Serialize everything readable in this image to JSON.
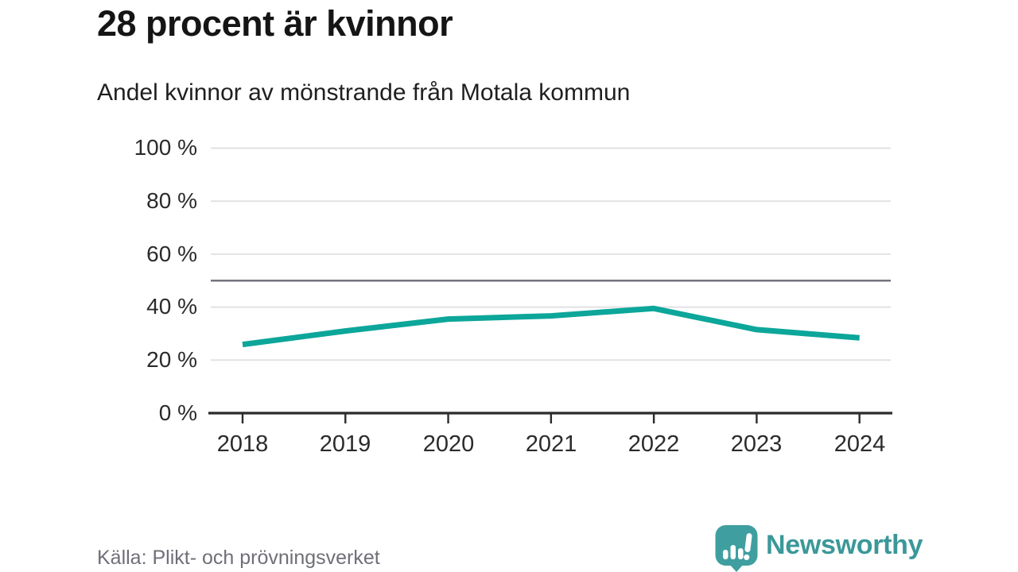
{
  "header": {
    "title": "28 procent är kvinnor",
    "subtitle": "Andel kvinnor av mönstrande från Motala kommun"
  },
  "footer": {
    "source": "Källa: Plikt- och prövningsverket",
    "brand": "Newsworthy"
  },
  "colors": {
    "line": "#0ca69a",
    "grid": "#e2e2e4",
    "reference": "#73737d",
    "axis": "#2b2b2b",
    "brand_teal": "#3f9fa0",
    "brand_text": "#3b9899",
    "title_text": "#151515",
    "muted_text": "#6f6f78"
  },
  "chart_data": {
    "type": "line",
    "title": "28 procent är kvinnor",
    "subtitle": "Andel kvinnor av mönstrande från Motala kommun",
    "x": [
      2018,
      2019,
      2020,
      2021,
      2022,
      2023,
      2024
    ],
    "series": [
      {
        "name": "Andel kvinnor av mönstrande",
        "color": "#0ca69a",
        "values": [
          25.9,
          31.0,
          35.5,
          36.7,
          39.5,
          31.5,
          28.4
        ]
      }
    ],
    "xlabel": "",
    "ylabel": "",
    "ylim": [
      0,
      100
    ],
    "grid": true,
    "legend": "none",
    "reference_line": {
      "value": 50
    },
    "yticks": [
      {
        "value": 100,
        "label": "100 %"
      },
      {
        "value": 80,
        "label": "80 %"
      },
      {
        "value": 60,
        "label": "60 %"
      },
      {
        "value": 40,
        "label": "40 %"
      },
      {
        "value": 20,
        "label": "20 %"
      },
      {
        "value": 0,
        "label": "0 %"
      }
    ],
    "xticks": [
      {
        "value": 2018,
        "label": "2018"
      },
      {
        "value": 2019,
        "label": "2019"
      },
      {
        "value": 2020,
        "label": "2020"
      },
      {
        "value": 2021,
        "label": "2021"
      },
      {
        "value": 2022,
        "label": "2022"
      },
      {
        "value": 2023,
        "label": "2023"
      },
      {
        "value": 2024,
        "label": "2024"
      }
    ],
    "source": "Källa: Plikt- och prövningsverket"
  }
}
